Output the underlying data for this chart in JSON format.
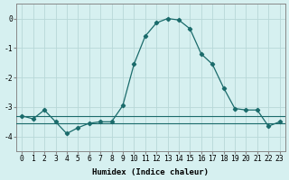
{
  "title": "",
  "xlabel": "Humidex (Indice chaleur)",
  "x": [
    0,
    1,
    2,
    3,
    4,
    5,
    6,
    7,
    8,
    9,
    10,
    11,
    12,
    13,
    14,
    15,
    16,
    17,
    18,
    19,
    20,
    21,
    22,
    23
  ],
  "y": [
    -3.3,
    -3.4,
    -3.1,
    -3.5,
    -3.9,
    -3.7,
    -3.55,
    -3.5,
    -3.5,
    -2.95,
    -1.55,
    -0.6,
    -0.15,
    0.0,
    -0.05,
    -0.35,
    -1.2,
    -1.55,
    -2.35,
    -3.05,
    -3.1,
    -3.1,
    -3.65,
    -3.5
  ],
  "line_color": "#1a6b6b",
  "marker": "D",
  "marker_size": 2.2,
  "bg_color": "#d6f0f0",
  "grid_color": "#b8d8d8",
  "ylim": [
    -4.5,
    0.5
  ],
  "xlim": [
    -0.5,
    23.5
  ],
  "yticks": [
    0,
    -1,
    -2,
    -3,
    -4
  ],
  "xticks": [
    0,
    1,
    2,
    3,
    4,
    5,
    6,
    7,
    8,
    9,
    10,
    11,
    12,
    13,
    14,
    15,
    16,
    17,
    18,
    19,
    20,
    21,
    22,
    23
  ],
  "xtick_labels": [
    "0",
    "1",
    "2",
    "3",
    "4",
    "5",
    "6",
    "7",
    "8",
    "9",
    "10",
    "11",
    "12",
    "13",
    "14",
    "15",
    "16",
    "17",
    "18",
    "19",
    "20",
    "21",
    "22",
    "23"
  ],
  "hline_y": -3.3,
  "hline_y2": -3.55,
  "axis_fontsize": 6.5,
  "tick_fontsize": 5.8,
  "spine_color": "#888888"
}
